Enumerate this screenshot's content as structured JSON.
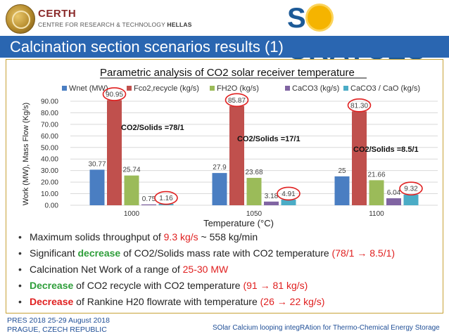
{
  "header": {
    "org_name": "CERTH",
    "org_sub_a": "CENTRE FOR RESEARCH & TECHNOLOGY",
    "org_sub_b": "HELLAS",
    "brand_left": "S",
    "brand_right": "CRATCES"
  },
  "title": "Calcination section scenarios results (1)",
  "chart_data": {
    "type": "bar",
    "title": "Parametric analysis of CO2 solar receiver temperature",
    "ylabel": "Work (MW), Mass Flow (Kg/s)",
    "xlabel": "Temperature (°C)",
    "categories": [
      "1000",
      "1050",
      "1100"
    ],
    "ylim": [
      0,
      90
    ],
    "yticks": [
      "0.00",
      "10.00",
      "20.00",
      "30.00",
      "40.00",
      "50.00",
      "60.00",
      "70.00",
      "80.00",
      "90.00"
    ],
    "grid": true,
    "legend_position": "top",
    "series": [
      {
        "name": "Wnet (MW)",
        "color": "#4a7ec2",
        "values": [
          30.77,
          27.9,
          25
        ],
        "labels": [
          "30.77",
          "27.9",
          "25"
        ]
      },
      {
        "name": "Fco2,recycle (kg/s)",
        "color": "#c0504d",
        "values": [
          90.95,
          85.87,
          81.3
        ],
        "labels": [
          "90.95",
          "85.87",
          "81.30"
        ]
      },
      {
        "name": "FH2O (kg/s)",
        "color": "#9bbb59",
        "values": [
          25.74,
          23.68,
          21.66
        ],
        "labels": [
          "25.74",
          "23.68",
          "21.66"
        ]
      },
      {
        "name": "CaCO3 (kg/s)",
        "color": "#8064a2",
        "values": [
          0.75,
          3.18,
          6.04
        ],
        "labels": [
          "0.75",
          "3.18",
          "6.04"
        ]
      },
      {
        "name": "CaCO3 / CaO (kg/s)",
        "color": "#4bacc6",
        "values": [
          1.16,
          4.91,
          9.32
        ],
        "labels": [
          "1.16",
          "4.91",
          "9.32"
        ]
      }
    ],
    "annotations": [
      "CO2/Solids =78/1",
      "CO2/Solids =17/1",
      "CO2/Solids =8.5/1"
    ]
  },
  "bullets": {
    "b1": {
      "a": "Maximum solids throughput of ",
      "b": "9.3 kg/s",
      "c": " ~ 558 kg/min"
    },
    "b2": {
      "a": "Significant ",
      "b": "decrease",
      "c": " of CO2/Solids mass rate with CO2 temperature ",
      "d": "(78/1 → 8.5/1)"
    },
    "b3": {
      "a": "Calcination Net Work of a range of ",
      "b": "25-30 MW"
    },
    "b4": {
      "a": "Decrease",
      "b": " of CO2 recycle with CO2 temperature ",
      "c": "(91 → 81 kg/s)"
    },
    "b5": {
      "a": "Decrease",
      "b": " of Rankine H20 flowrate with temperature ",
      "c": "(26 → 22 kg/s)"
    }
  },
  "footer": {
    "left_1": "PRES 2018 25-29 August 2018",
    "left_2": "PRAGUE, CZECH REPUBLIC",
    "right": "SOlar Calcium looping integRAtion for Thermo-Chemical Energy Storage"
  }
}
